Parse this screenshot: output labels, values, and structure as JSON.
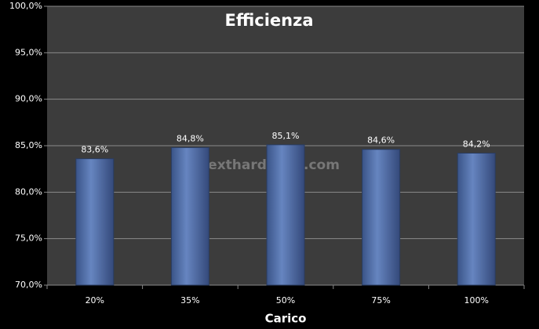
{
  "chart_data": {
    "type": "bar",
    "title": "Efficienza",
    "x_label": "Carico",
    "watermark": "nexthardware.com",
    "categories": [
      "20%",
      "35%",
      "50%",
      "75%",
      "100%"
    ],
    "values": [
      83.6,
      84.8,
      85.1,
      84.6,
      84.2
    ],
    "value_labels": [
      "83,6%",
      "84,8%",
      "85,1%",
      "84,6%",
      "84,2%"
    ],
    "color": "#4f6fa8",
    "ylim": [
      70,
      100
    ],
    "yticks": [
      {
        "value": 70,
        "label": "70,0%"
      },
      {
        "value": 75,
        "label": "75,0%"
      },
      {
        "value": 80,
        "label": "80,0%"
      },
      {
        "value": 85,
        "label": "85,0%"
      },
      {
        "value": 90,
        "label": "90,0%"
      },
      {
        "value": 95,
        "label": "95,0%"
      },
      {
        "value": 100,
        "label": "100,0%"
      }
    ],
    "grid": true
  }
}
